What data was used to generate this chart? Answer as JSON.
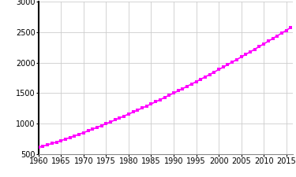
{
  "title": "",
  "xlabel": "",
  "ylabel": "",
  "xlim": [
    1960,
    2016.5
  ],
  "ylim": [
    500,
    3000
  ],
  "yticks": [
    500,
    1000,
    1500,
    2000,
    2500,
    3000
  ],
  "xticks": [
    1960,
    1965,
    1970,
    1975,
    1980,
    1985,
    1990,
    1995,
    2000,
    2005,
    2010,
    2015
  ],
  "line_color": "#FF00FF",
  "marker_color": "#FF00FF",
  "years": [
    1960,
    1961,
    1962,
    1963,
    1964,
    1965,
    1966,
    1967,
    1968,
    1969,
    1970,
    1971,
    1972,
    1973,
    1974,
    1975,
    1976,
    1977,
    1978,
    1979,
    1980,
    1981,
    1982,
    1983,
    1984,
    1985,
    1986,
    1987,
    1988,
    1989,
    1990,
    1991,
    1992,
    1993,
    1994,
    1995,
    1996,
    1997,
    1998,
    1999,
    2000,
    2001,
    2002,
    2003,
    2004,
    2005,
    2006,
    2007,
    2008,
    2009,
    2010,
    2011,
    2012,
    2013,
    2014,
    2015,
    2016
  ],
  "population": [
    608,
    629,
    651,
    673,
    696,
    720,
    745,
    770,
    796,
    823,
    851,
    879,
    908,
    937,
    967,
    997,
    1028,
    1059,
    1091,
    1123,
    1155,
    1188,
    1221,
    1254,
    1288,
    1322,
    1357,
    1392,
    1428,
    1464,
    1500,
    1537,
    1574,
    1612,
    1650,
    1688,
    1727,
    1766,
    1806,
    1846,
    1886,
    1927,
    1968,
    2009,
    2051,
    2093,
    2135,
    2178,
    2221,
    2264,
    2308,
    2352,
    2396,
    2441,
    2486,
    2531,
    2577
  ],
  "background_color": "#ffffff",
  "grid_color": "#cccccc",
  "tick_fontsize": 7,
  "left_spine_color": "#000000",
  "bottom_spine_color": "#888888"
}
